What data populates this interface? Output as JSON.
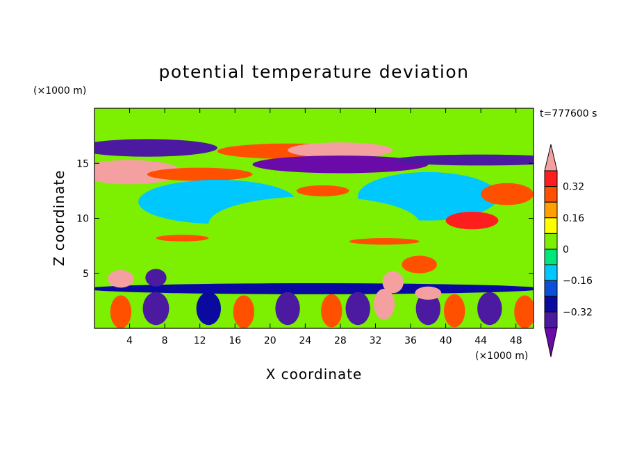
{
  "chart_data": {
    "type": "heatmap",
    "title": "potential temperature deviation",
    "xlabel": "X coordinate",
    "ylabel": "Z coordinate",
    "x_unit": "(×1000 m)",
    "y_unit": "(×1000 m)",
    "time_label": "t=777600 s",
    "xlim": [
      0,
      50
    ],
    "ylim": [
      0,
      20
    ],
    "x_ticks": [
      4,
      8,
      12,
      16,
      20,
      24,
      28,
      32,
      36,
      40,
      44,
      48
    ],
    "y_ticks": [
      5,
      10,
      15
    ],
    "colorbar": {
      "labels": [
        {
          "value": 0.32,
          "text": "0.32"
        },
        {
          "value": 0.16,
          "text": "0.16"
        },
        {
          "value": 0,
          "text": "0"
        },
        {
          "value": -0.16,
          "text": "−0.16"
        },
        {
          "value": -0.32,
          "text": "−0.32"
        }
      ],
      "levels": [
        -0.4,
        -0.32,
        -0.24,
        -0.16,
        -0.08,
        0,
        0.08,
        0.16,
        0.24,
        0.32,
        0.4
      ],
      "colors": [
        "#6a0aa8",
        "#4b1aa0",
        "#0a0aa0",
        "#0a50d8",
        "#00c8ff",
        "#00e67c",
        "#7cf000",
        "#ffff00",
        "#ffa000",
        "#ff5000",
        "#ff1e1e",
        "#f5a0a0"
      ]
    },
    "background_color": "#7cf000",
    "regions": [
      {
        "x": 25,
        "z": 18.2,
        "rx": 30,
        "ry": 1.4,
        "v": 0.04
      },
      {
        "x": 6,
        "z": 16.4,
        "rx": 8,
        "ry": 0.8,
        "v": -0.36
      },
      {
        "x": 4,
        "z": 14.2,
        "rx": 6,
        "ry": 1.1,
        "v": 0.42
      },
      {
        "x": 22,
        "z": 16.1,
        "rx": 8,
        "ry": 0.7,
        "v": 0.3
      },
      {
        "x": 28,
        "z": 16.2,
        "rx": 6,
        "ry": 0.7,
        "v": 0.42
      },
      {
        "x": 28,
        "z": 14.9,
        "rx": 10,
        "ry": 0.8,
        "v": -0.42
      },
      {
        "x": 44,
        "z": 15.3,
        "rx": 10,
        "ry": 0.5,
        "v": -0.36
      },
      {
        "x": 12,
        "z": 14.0,
        "rx": 6,
        "ry": 0.6,
        "v": 0.3
      },
      {
        "x": 14,
        "z": 11.5,
        "rx": 9,
        "ry": 2.0,
        "v": -0.12
      },
      {
        "x": 38,
        "z": 12.0,
        "rx": 8,
        "ry": 2.2,
        "v": -0.12
      },
      {
        "x": 26,
        "z": 12.5,
        "rx": 3,
        "ry": 0.5,
        "v": 0.3
      },
      {
        "x": 47,
        "z": 12.2,
        "rx": 3,
        "ry": 1.0,
        "v": 0.3
      },
      {
        "x": 43,
        "z": 9.8,
        "rx": 3,
        "ry": 0.8,
        "v": 0.32
      },
      {
        "x": 25,
        "z": 9.5,
        "rx": 12,
        "ry": 2.5,
        "v": 0.02
      },
      {
        "x": 20,
        "z": 6.5,
        "rx": 20,
        "ry": 2.0,
        "v": 0.06
      },
      {
        "x": 10,
        "z": 8.2,
        "rx": 3,
        "ry": 0.3,
        "v": 0.3
      },
      {
        "x": 33,
        "z": 7.9,
        "rx": 4,
        "ry": 0.3,
        "v": 0.28
      },
      {
        "x": 37,
        "z": 5.8,
        "rx": 2,
        "ry": 0.8,
        "v": 0.28
      },
      {
        "x": 25,
        "z": 3.6,
        "rx": 26,
        "ry": 0.5,
        "v": -0.32
      },
      {
        "x": 7,
        "z": 1.8,
        "rx": 1.5,
        "ry": 1.5,
        "v": -0.4
      },
      {
        "x": 3,
        "z": 1.5,
        "rx": 1.2,
        "ry": 1.5,
        "v": 0.3
      },
      {
        "x": 13,
        "z": 1.8,
        "rx": 1.4,
        "ry": 1.5,
        "v": -0.3
      },
      {
        "x": 17,
        "z": 1.5,
        "rx": 1.2,
        "ry": 1.5,
        "v": 0.3
      },
      {
        "x": 22,
        "z": 1.8,
        "rx": 1.4,
        "ry": 1.5,
        "v": -0.35
      },
      {
        "x": 27,
        "z": 1.6,
        "rx": 1.2,
        "ry": 1.5,
        "v": 0.3
      },
      {
        "x": 30,
        "z": 1.8,
        "rx": 1.4,
        "ry": 1.5,
        "v": -0.35
      },
      {
        "x": 33,
        "z": 2.2,
        "rx": 1.2,
        "ry": 1.4,
        "v": 0.42
      },
      {
        "x": 38,
        "z": 1.8,
        "rx": 1.4,
        "ry": 1.5,
        "v": -0.35
      },
      {
        "x": 41,
        "z": 1.6,
        "rx": 1.2,
        "ry": 1.5,
        "v": 0.3
      },
      {
        "x": 45,
        "z": 1.8,
        "rx": 1.4,
        "ry": 1.5,
        "v": -0.35
      },
      {
        "x": 49,
        "z": 1.5,
        "rx": 1.2,
        "ry": 1.5,
        "v": 0.3
      },
      {
        "x": 3,
        "z": 4.5,
        "rx": 1.5,
        "ry": 0.8,
        "v": 0.42
      },
      {
        "x": 7,
        "z": 4.6,
        "rx": 1.2,
        "ry": 0.8,
        "v": -0.35
      },
      {
        "x": 34,
        "z": 4.2,
        "rx": 1.2,
        "ry": 1.0,
        "v": 0.42
      },
      {
        "x": 38,
        "z": 3.2,
        "rx": 1.5,
        "ry": 0.6,
        "v": 0.42
      }
    ]
  }
}
